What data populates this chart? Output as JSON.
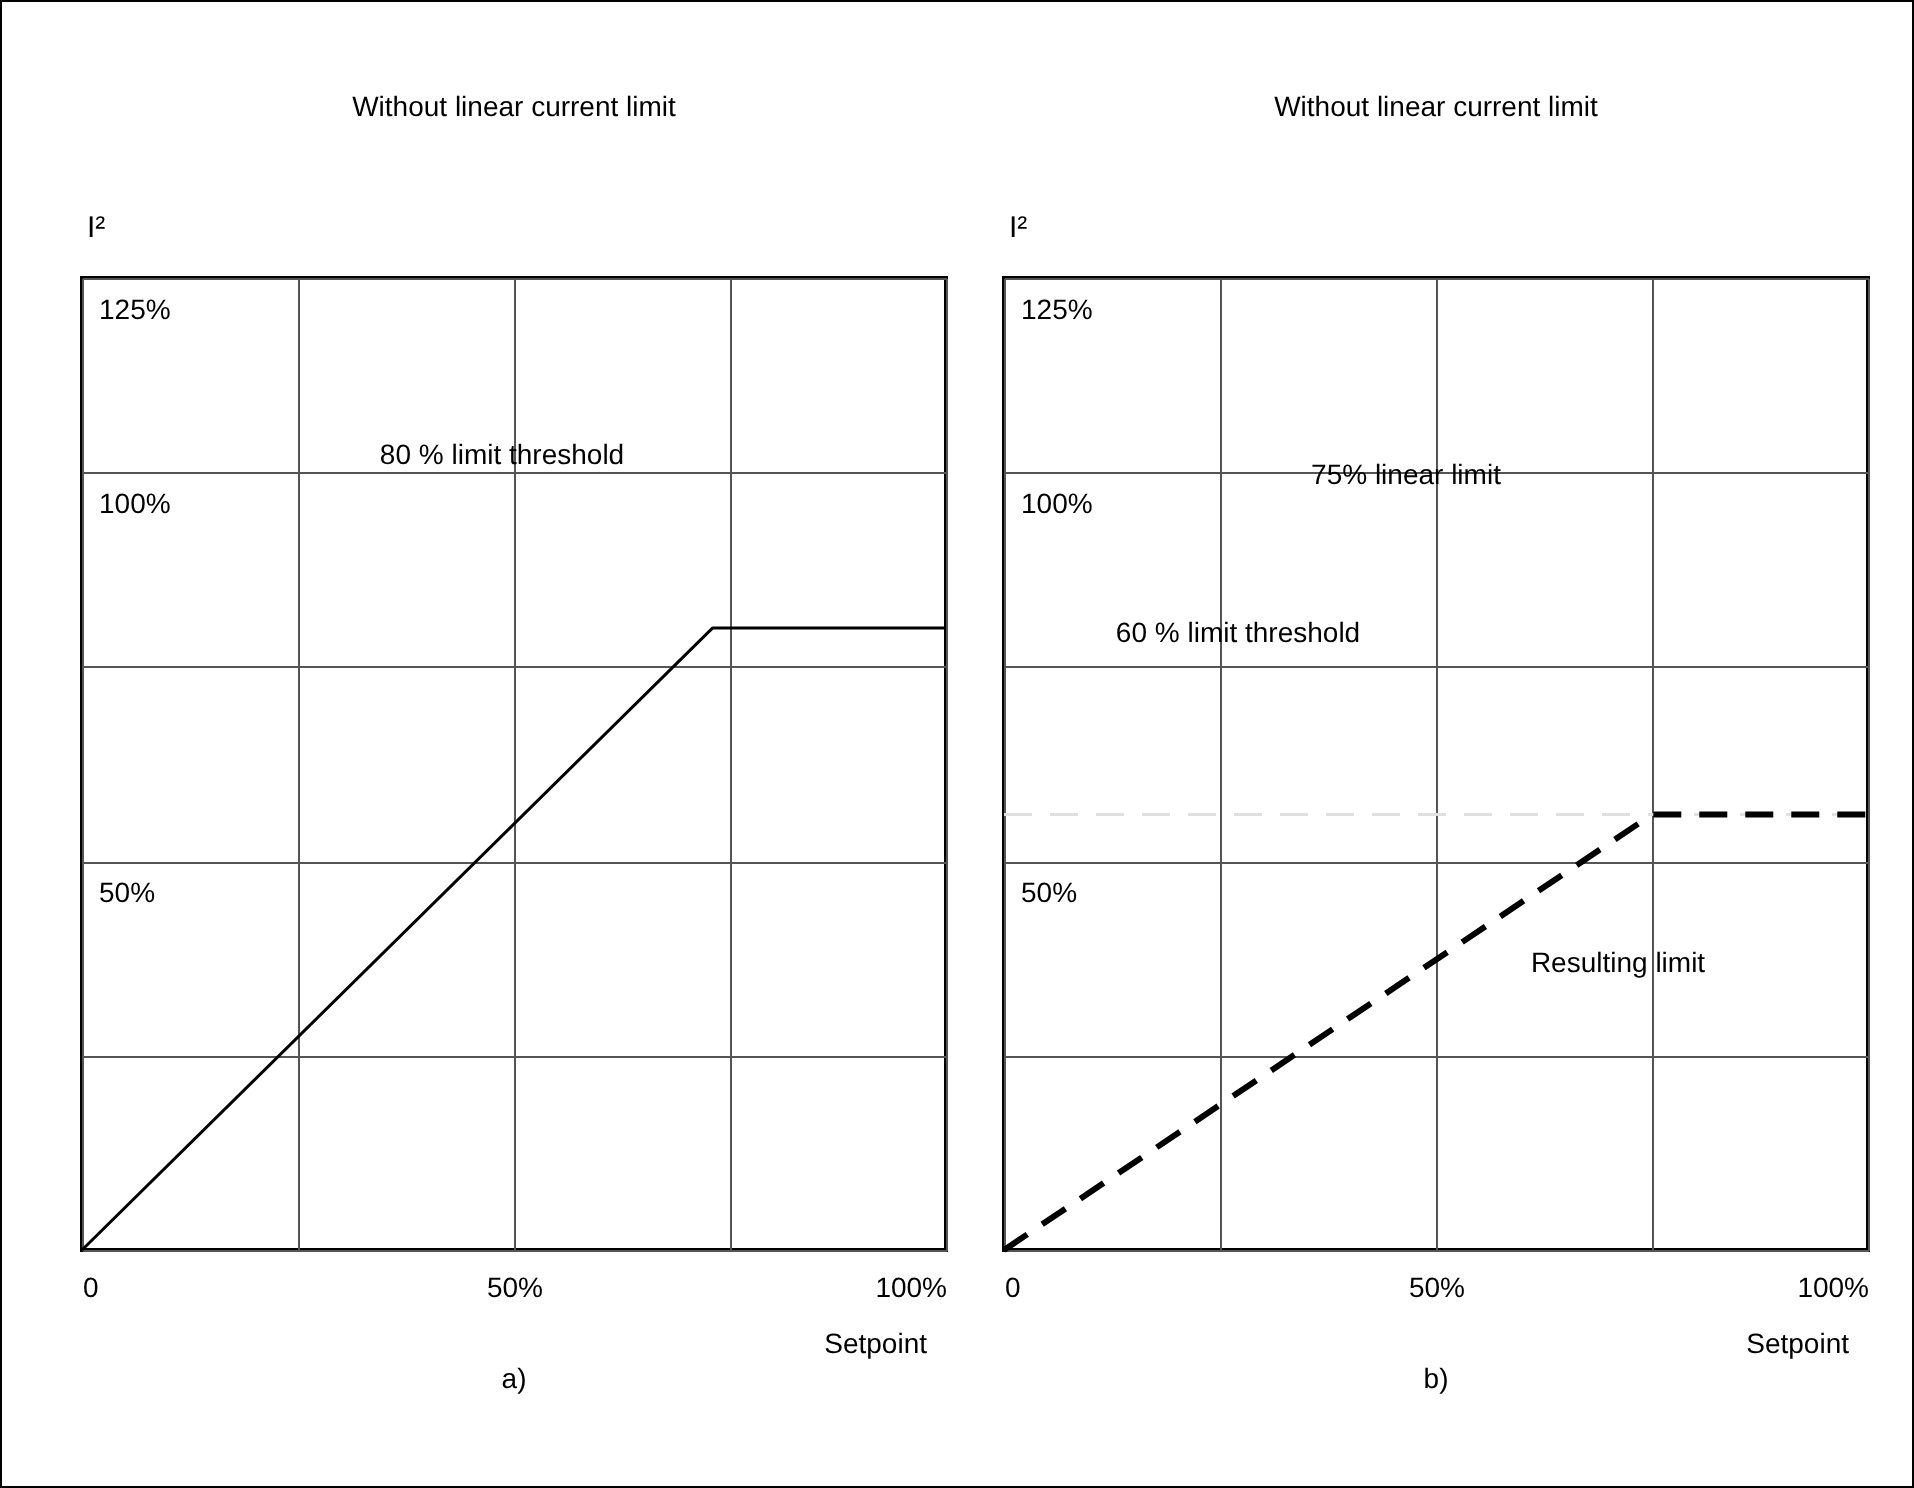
{
  "chart_data": [
    {
      "type": "line",
      "title": "Without linear current limit",
      "xlabel": "Setpoint",
      "ylabel": "I²",
      "x": [
        0,
        73,
        100
      ],
      "series": [
        {
          "color": "#000000",
          "values": [
            0,
            80,
            80
          ]
        }
      ],
      "xlim": [
        0,
        100
      ],
      "ylim": [
        0,
        125
      ],
      "xticks": [
        0,
        {
          "value": 25,
          "label": null
        },
        {
          "value": 50,
          "label": "50%"
        },
        {
          "value": 75,
          "label": null
        },
        {
          "value": 100,
          "label": "100%"
        }
      ],
      "yticks": [
        {
          "value": 0,
          "label": null
        },
        {
          "value": 25,
          "label": null
        },
        {
          "value": 50,
          "label": "50%"
        },
        {
          "value": 75,
          "label": null
        },
        {
          "value": 100,
          "label": "100%"
        },
        {
          "value": 125,
          "label": "125%"
        }
      ],
      "grid": true,
      "marker": "none",
      "line_style": "solid",
      "annotations": [
        "80 % limit threshold",
        "a)"
      ]
    },
    {
      "type": "line",
      "title": "Without linear current limit",
      "xlabel": "Setpoint",
      "ylabel": "I²",
      "x": [
        0,
        75,
        100
      ],
      "series": [
        {
          "color": "#000000",
          "values": [
            0,
            56,
            56
          ]
        }
      ],
      "xlim": [
        0,
        100
      ],
      "ylim": [
        0,
        125
      ],
      "xticks": [
        0,
        {
          "value": 25,
          "label": null
        },
        {
          "value": 50,
          "label": "50%"
        },
        {
          "value": 75,
          "label": null
        },
        {
          "value": 100,
          "label": "100%"
        }
      ],
      "yticks": [
        {
          "value": 0,
          "label": null
        },
        {
          "value": 25,
          "label": null
        },
        {
          "value": 50,
          "label": "50%"
        },
        {
          "value": 75,
          "label": null
        },
        {
          "value": 100,
          "label": "100%"
        },
        {
          "value": 125,
          "label": "125%"
        }
      ],
      "grid": true,
      "marker": "none",
      "line_style": "dashed",
      "ref_lines": [
        {
          "axis": "y",
          "value": 56,
          "color": "#e0e0e0",
          "line_style": "dashed"
        }
      ],
      "annotations": [
        "75% linear limit",
        "60 % limit threshold",
        "Resulting limit",
        "b)"
      ]
    }
  ]
}
